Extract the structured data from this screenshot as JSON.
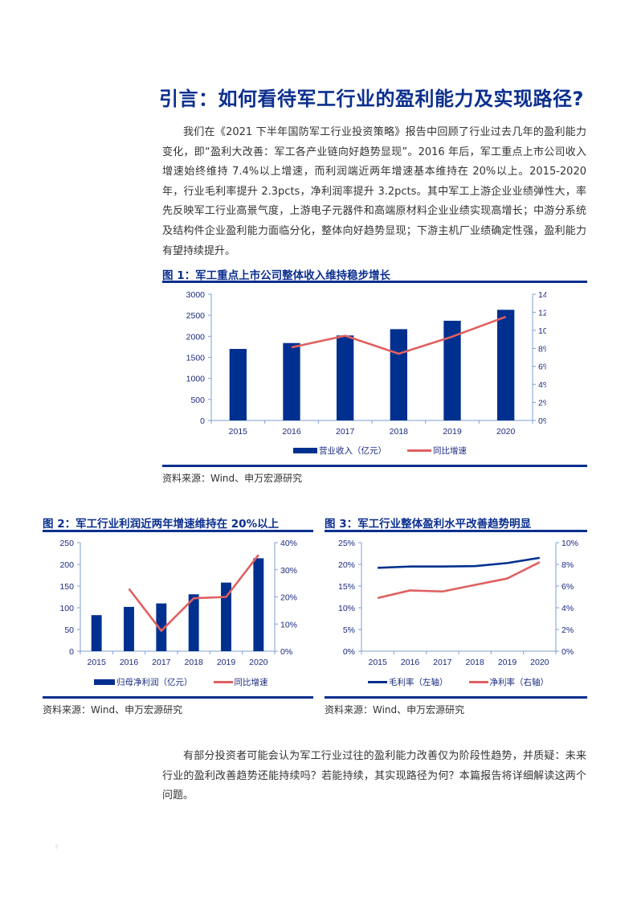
{
  "page": {
    "title": "引言：如何看待军工行业的盈利能力及实现路径?",
    "intro_paragraph": "我们在《2021 下半年国防军工行业投资策略》报告中回顾了行业过去几年的盈利能力变化，即“盈利大改善：军工各产业链向好趋势显现”。2016 年后，军工重点上市公司收入增速始终维持 7.4%以上增速，而利润端近两年增速基本维持在 20%以上。2015-2020 年，行业毛利率提升 2.3pcts，净利润率提升 3.2pcts。其中军工上游企业业绩弹性大，率先反映军工行业高景气度，上游电子元器件和高端原材料企业业绩实现高增长；中游分系统及结构件企业盈利能力面临分化，整体向好趋势显现；下游主机厂业绩确定性强，盈利能力有望持续提升。",
    "closing_paragraph": "有部分投资者可能会认为军工行业过往的盈利能力改善仅为阶段性趋势，并质疑：未来行业的盈利改善趋势还能持续吗？若能持续，其实现路径为何？本篇报告将详细解读这两个问题。",
    "colors": {
      "brand_blue": "#0b2f8f",
      "bar_blue": "#00308f",
      "line_red": "#e06060",
      "axis": "#7f9fd0"
    }
  },
  "figures": [
    {
      "title": "图 1：军工重点上市公司整体收入维持稳步增长",
      "source": "资料来源：Wind、申万宏源研究",
      "legend": [
        "营业收入（亿元）",
        "同比增速"
      ]
    },
    {
      "title": "图 2：军工行业利润近两年增速维持在 20%以上",
      "source": "资料来源：Wind、申万宏源研究",
      "legend": [
        "归母净利润（亿元）",
        "同比增速"
      ]
    },
    {
      "title": "图 3：军工行业整体盈利水平改善趋势明显",
      "source": "资料来源：Wind、申万宏源研究",
      "legend": [
        "毛利率（左轴）",
        "净利率（右轴）"
      ]
    }
  ],
  "chart_data": [
    {
      "type": "bar",
      "title": "图 1：军工重点上市公司整体收入维持稳步增长",
      "categories": [
        "2015",
        "2016",
        "2017",
        "2018",
        "2019",
        "2020"
      ],
      "series": [
        {
          "name": "营业收入（亿元）",
          "type": "bar",
          "axis": "left",
          "values": [
            1700,
            1840,
            2020,
            2170,
            2370,
            2630
          ]
        },
        {
          "name": "同比增速",
          "type": "line",
          "axis": "right",
          "values": [
            null,
            8.1,
            9.4,
            7.4,
            9.3,
            11.5
          ]
        }
      ],
      "left_ticks": [
        "0",
        "500",
        "1000",
        "1500",
        "2000",
        "2500",
        "3000"
      ],
      "right_ticks": [
        "0%",
        "2%",
        "4%",
        "6%",
        "8%",
        "10%",
        "12%",
        "14%"
      ],
      "ylim_left": [
        0,
        3000
      ],
      "ylim_right": [
        0,
        14
      ],
      "grid": false,
      "legend_position": "bottom"
    },
    {
      "type": "bar",
      "title": "图 2：军工行业利润近两年增速维持在 20%以上",
      "categories": [
        "2015",
        "2016",
        "2017",
        "2018",
        "2019",
        "2020"
      ],
      "series": [
        {
          "name": "归母净利润（亿元）",
          "type": "bar",
          "axis": "left",
          "values": [
            83,
            102,
            110,
            131,
            158,
            214
          ]
        },
        {
          "name": "同比增速",
          "type": "line",
          "axis": "right",
          "values": [
            null,
            23.0,
            7.5,
            19.5,
            20.0,
            35.5
          ]
        }
      ],
      "left_ticks": [
        "0",
        "50",
        "100",
        "150",
        "200",
        "250"
      ],
      "right_ticks": [
        "0%",
        "10%",
        "20%",
        "30%",
        "40%"
      ],
      "ylim_left": [
        0,
        250
      ],
      "ylim_right": [
        0,
        40
      ],
      "grid": false,
      "legend_position": "bottom"
    },
    {
      "type": "line",
      "title": "图 3：军工行业整体盈利水平改善趋势明显",
      "categories": [
        "2015",
        "2016",
        "2017",
        "2018",
        "2019",
        "2020"
      ],
      "series": [
        {
          "name": "毛利率（左轴）",
          "type": "line",
          "axis": "left",
          "values": [
            19.2,
            19.5,
            19.5,
            19.6,
            20.3,
            21.5
          ]
        },
        {
          "name": "净利率（右轴）",
          "type": "line",
          "axis": "right",
          "values": [
            4.9,
            5.6,
            5.5,
            6.1,
            6.7,
            8.2
          ]
        }
      ],
      "left_ticks": [
        "0%",
        "5%",
        "10%",
        "15%",
        "20%",
        "25%"
      ],
      "right_ticks": [
        "0%",
        "2%",
        "4%",
        "6%",
        "8%",
        "10%"
      ],
      "ylim_left": [
        0,
        25
      ],
      "ylim_right": [
        0,
        10
      ],
      "grid": false,
      "legend_position": "bottom"
    }
  ]
}
